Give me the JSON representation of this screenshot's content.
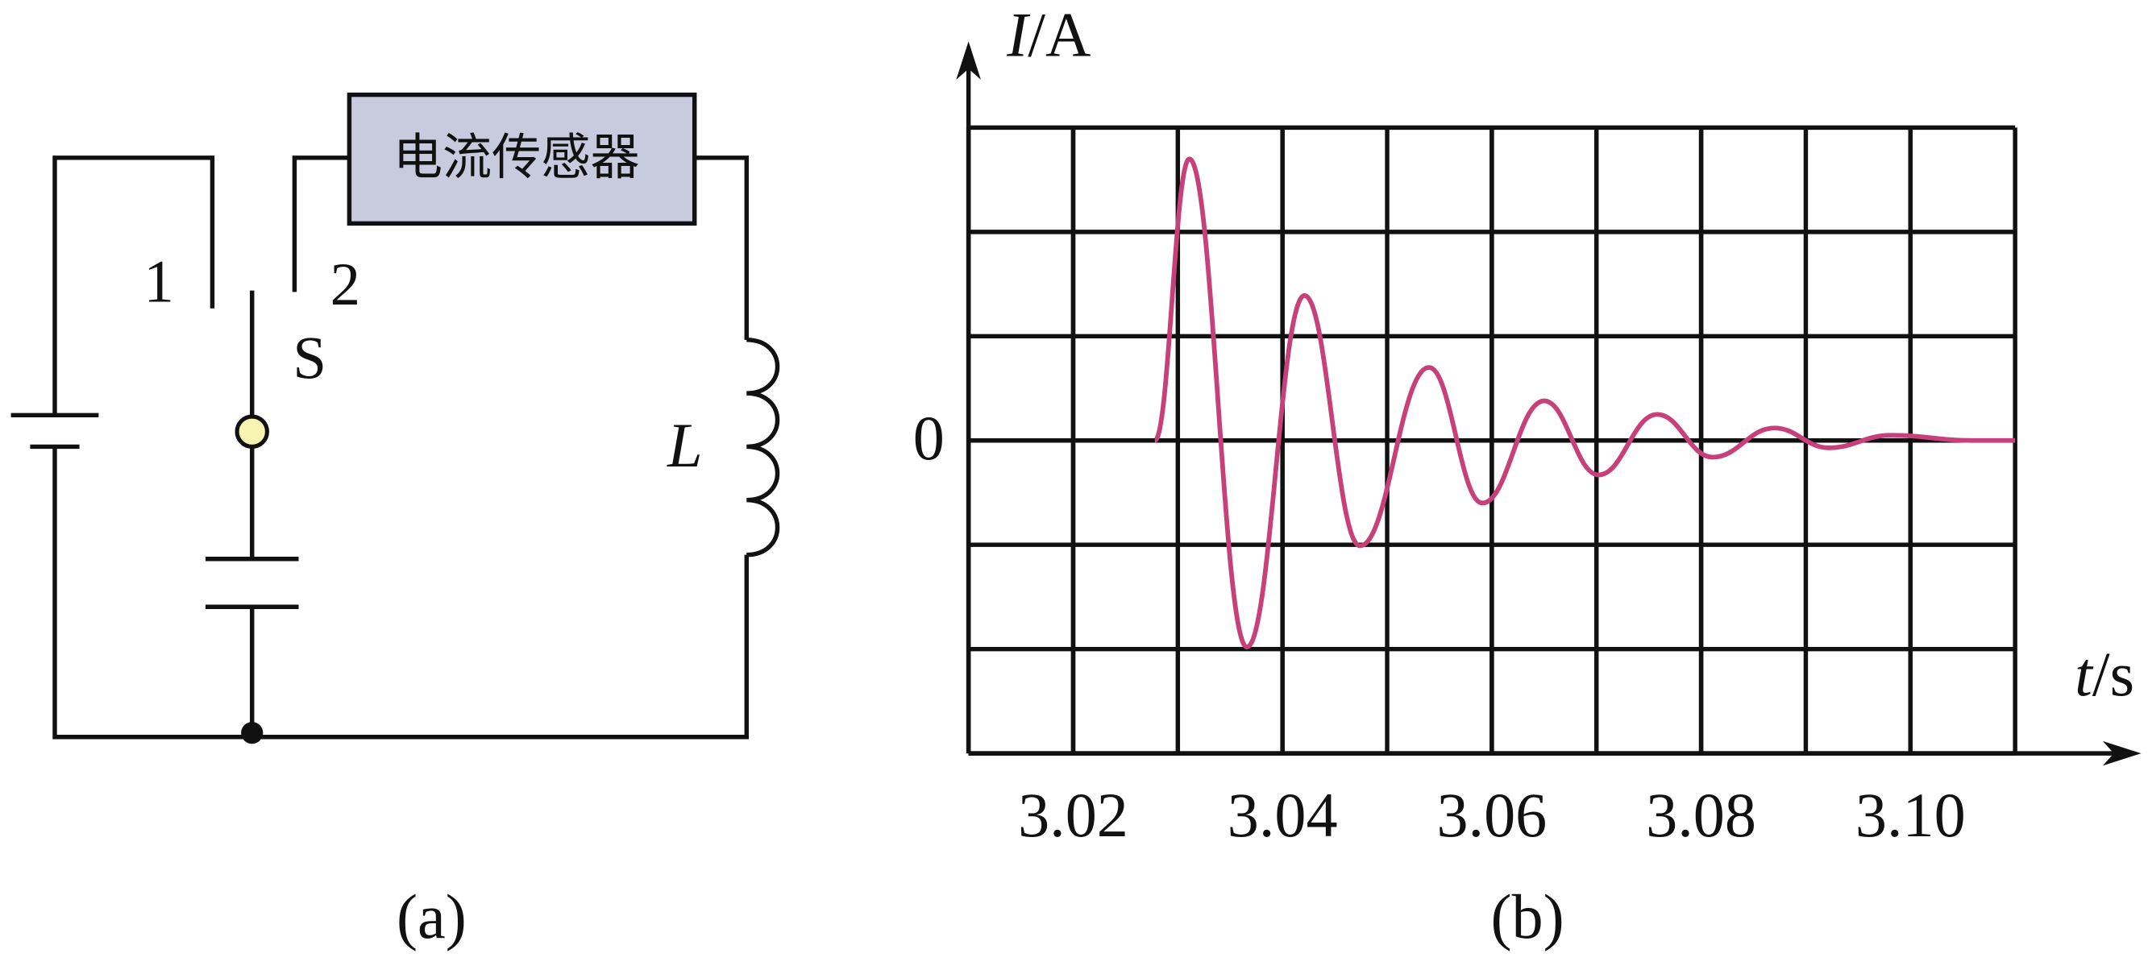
{
  "circuit": {
    "sensor": "电流传感器",
    "contact_1": "1",
    "contact_2": "2",
    "switch": "S",
    "inductor": "L",
    "caption": "(a)"
  },
  "chart_data": {
    "type": "line",
    "caption": "(b)",
    "y_label": "I/A",
    "x_label": "t/s",
    "xlim": [
      3.01,
      3.11
    ],
    "ylim": [
      -3,
      3
    ],
    "xticks": [
      3.02,
      3.04,
      3.06,
      3.08,
      {
        "value": 3.1,
        "label": "3.10"
      }
    ],
    "yticks": [
      0
    ],
    "grid": true,
    "color": "#c8407a",
    "x": [
      3.0278,
      3.0311,
      3.0366,
      3.0421,
      3.0474,
      3.054,
      3.0591,
      3.065,
      3.0702,
      3.0758,
      3.0811,
      3.087,
      3.0922,
      3.0981,
      3.1059,
      3.11
    ],
    "values": [
      0,
      2.7,
      -1.98,
      1.39,
      -1.01,
      0.7,
      -0.6,
      0.38,
      -0.33,
      0.25,
      -0.16,
      0.12,
      -0.07,
      0.05,
      0,
      0
    ]
  }
}
